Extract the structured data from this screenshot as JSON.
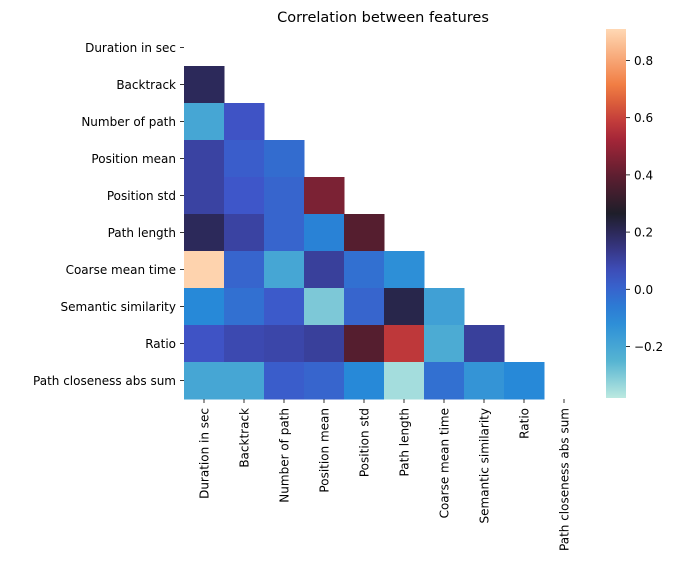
{
  "chart_data": {
    "type": "heatmap",
    "title": "Correlation between features",
    "features": [
      "Duration in sec",
      "Backtrack",
      "Number of path",
      "Position mean",
      "Position std",
      "Path length",
      "Coarse mean time",
      "Semantic similarity",
      "Ratio",
      "Path closeness abs sum"
    ],
    "mask": "upper-triangle-and-diagonal",
    "matrix": [
      [
        null,
        null,
        null,
        null,
        null,
        null,
        null,
        null,
        null,
        null
      ],
      [
        0.2,
        null,
        null,
        null,
        null,
        null,
        null,
        null,
        null,
        null
      ],
      [
        -0.2,
        0.05,
        null,
        null,
        null,
        null,
        null,
        null,
        null,
        null
      ],
      [
        0.1,
        0.02,
        -0.02,
        null,
        null,
        null,
        null,
        null,
        null,
        null
      ],
      [
        0.1,
        0.04,
        0.0,
        0.45,
        null,
        null,
        null,
        null,
        null,
        null
      ],
      [
        0.2,
        0.1,
        0.0,
        -0.08,
        0.38,
        null,
        null,
        null,
        null,
        null
      ],
      [
        0.9,
        0.0,
        -0.2,
        0.11,
        -0.03,
        -0.12,
        null,
        null,
        null,
        null
      ],
      [
        -0.1,
        -0.03,
        0.03,
        -0.3,
        0.0,
        0.22,
        -0.18,
        null,
        null,
        null
      ],
      [
        0.05,
        0.08,
        0.09,
        0.11,
        0.38,
        0.58,
        -0.22,
        0.11,
        null,
        null
      ],
      [
        -0.2,
        -0.2,
        0.02,
        0.0,
        -0.1,
        -0.35,
        -0.03,
        -0.14,
        -0.1,
        null
      ]
    ],
    "colorbar": {
      "min": -0.38,
      "max": 0.91,
      "ticks": [
        0.8,
        0.6,
        0.4,
        0.2,
        0.0,
        -0.2
      ],
      "tick_labels": [
        "0.8",
        "0.6",
        "0.4",
        "0.2",
        "0.0",
        "−0.2"
      ],
      "colormap": "icefire"
    }
  }
}
